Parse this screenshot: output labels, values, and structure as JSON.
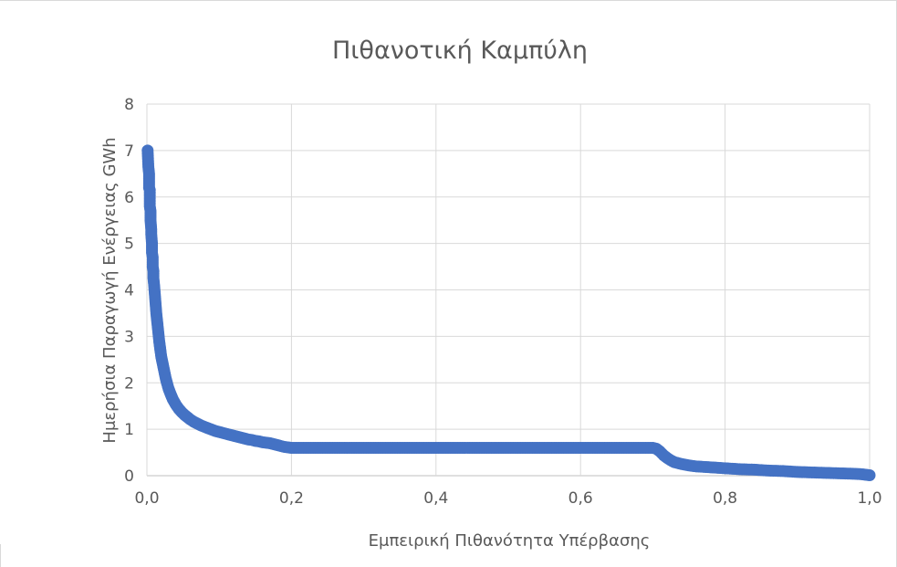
{
  "chart_data": {
    "type": "scatter",
    "title": "Πιθανοτική Καμπύλη",
    "xlabel": "Εμπειρική Πιθανότητα Υπέρβασης",
    "ylabel": "Ημερήσια Παραγωγή Ενέργειας GWh",
    "xlim": [
      0,
      1
    ],
    "ylim": [
      0,
      8
    ],
    "x_ticks": [
      "0,0",
      "0,2",
      "0,4",
      "0,6",
      "0,8",
      "1,0"
    ],
    "y_ticks": [
      "0",
      "1",
      "2",
      "3",
      "4",
      "5",
      "6",
      "7",
      "8"
    ],
    "grid": true,
    "marker_color": "#4472c4",
    "series": [
      {
        "points": [
          [
            0.001,
            7.0
          ],
          [
            0.002,
            6.65
          ],
          [
            0.003,
            6.5
          ],
          [
            0.003,
            6.2
          ],
          [
            0.004,
            6.15
          ],
          [
            0.004,
            5.8
          ],
          [
            0.005,
            5.7
          ],
          [
            0.005,
            5.5
          ],
          [
            0.006,
            5.3
          ],
          [
            0.006,
            5.2
          ],
          [
            0.007,
            5.0
          ],
          [
            0.007,
            4.8
          ],
          [
            0.008,
            4.7
          ],
          [
            0.008,
            4.5
          ],
          [
            0.009,
            4.4
          ],
          [
            0.009,
            4.25
          ],
          [
            0.01,
            4.1
          ],
          [
            0.011,
            3.9
          ],
          [
            0.012,
            3.7
          ],
          [
            0.013,
            3.5
          ],
          [
            0.014,
            3.35
          ],
          [
            0.015,
            3.2
          ],
          [
            0.016,
            3.05
          ],
          [
            0.017,
            2.9
          ],
          [
            0.018,
            2.78
          ],
          [
            0.019,
            2.66
          ],
          [
            0.02,
            2.55
          ],
          [
            0.022,
            2.4
          ],
          [
            0.024,
            2.25
          ],
          [
            0.026,
            2.1
          ],
          [
            0.028,
            1.98
          ],
          [
            0.03,
            1.87
          ],
          [
            0.033,
            1.75
          ],
          [
            0.036,
            1.64
          ],
          [
            0.04,
            1.53
          ],
          [
            0.044,
            1.44
          ],
          [
            0.048,
            1.37
          ],
          [
            0.052,
            1.31
          ],
          [
            0.056,
            1.26
          ],
          [
            0.06,
            1.21
          ],
          [
            0.065,
            1.16
          ],
          [
            0.07,
            1.12
          ],
          [
            0.075,
            1.08
          ],
          [
            0.08,
            1.05
          ],
          [
            0.085,
            1.02
          ],
          [
            0.09,
            0.99
          ],
          [
            0.095,
            0.96
          ],
          [
            0.1,
            0.94
          ],
          [
            0.105,
            0.92
          ],
          [
            0.11,
            0.9
          ],
          [
            0.115,
            0.88
          ],
          [
            0.12,
            0.86
          ],
          [
            0.125,
            0.84
          ],
          [
            0.13,
            0.82
          ],
          [
            0.135,
            0.8
          ],
          [
            0.14,
            0.78
          ],
          [
            0.145,
            0.77
          ],
          [
            0.15,
            0.75
          ],
          [
            0.155,
            0.74
          ],
          [
            0.16,
            0.72
          ],
          [
            0.165,
            0.71
          ],
          [
            0.17,
            0.7
          ],
          [
            0.175,
            0.68
          ],
          [
            0.18,
            0.66
          ],
          [
            0.185,
            0.64
          ],
          [
            0.19,
            0.62
          ],
          [
            0.195,
            0.61
          ],
          [
            0.2,
            0.6
          ],
          [
            0.22,
            0.6
          ],
          [
            0.24,
            0.6
          ],
          [
            0.26,
            0.6
          ],
          [
            0.28,
            0.6
          ],
          [
            0.3,
            0.6
          ],
          [
            0.32,
            0.6
          ],
          [
            0.34,
            0.6
          ],
          [
            0.36,
            0.6
          ],
          [
            0.38,
            0.6
          ],
          [
            0.4,
            0.6
          ],
          [
            0.42,
            0.6
          ],
          [
            0.44,
            0.6
          ],
          [
            0.46,
            0.6
          ],
          [
            0.48,
            0.6
          ],
          [
            0.5,
            0.6
          ],
          [
            0.52,
            0.6
          ],
          [
            0.54,
            0.6
          ],
          [
            0.56,
            0.6
          ],
          [
            0.58,
            0.6
          ],
          [
            0.6,
            0.6
          ],
          [
            0.62,
            0.6
          ],
          [
            0.64,
            0.6
          ],
          [
            0.66,
            0.6
          ],
          [
            0.68,
            0.6
          ],
          [
            0.7,
            0.6
          ],
          [
            0.705,
            0.58
          ],
          [
            0.71,
            0.52
          ],
          [
            0.715,
            0.44
          ],
          [
            0.72,
            0.38
          ],
          [
            0.725,
            0.33
          ],
          [
            0.73,
            0.29
          ],
          [
            0.74,
            0.25
          ],
          [
            0.75,
            0.22
          ],
          [
            0.76,
            0.2
          ],
          [
            0.78,
            0.18
          ],
          [
            0.8,
            0.16
          ],
          [
            0.82,
            0.14
          ],
          [
            0.84,
            0.13
          ],
          [
            0.86,
            0.11
          ],
          [
            0.88,
            0.1
          ],
          [
            0.9,
            0.08
          ],
          [
            0.92,
            0.07
          ],
          [
            0.94,
            0.06
          ],
          [
            0.96,
            0.05
          ],
          [
            0.98,
            0.04
          ],
          [
            0.99,
            0.03
          ],
          [
            0.995,
            0.02
          ],
          [
            1.0,
            0.01
          ]
        ]
      }
    ]
  }
}
